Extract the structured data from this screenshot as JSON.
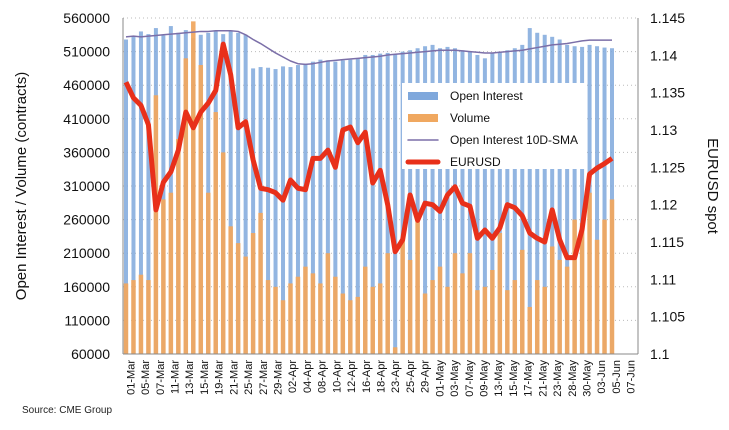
{
  "chart_data": {
    "type": "bar",
    "title": "",
    "ylabel": "Open Interest / Volume (contracts)",
    "y2label": "EURUSD spot",
    "ylim": [
      60000,
      560000
    ],
    "yticks": [
      60000,
      110000,
      160000,
      210000,
      260000,
      310000,
      360000,
      410000,
      460000,
      510000,
      560000
    ],
    "y2lim": [
      1.1,
      1.145
    ],
    "y2ticks": [
      "1.1",
      "1.105",
      "1.11",
      "1.115",
      "1.12",
      "1.125",
      "1.13",
      "1.135",
      "1.14",
      "1.145"
    ],
    "xticklabels": [
      "01-Mar",
      "05-Mar",
      "07-Mar",
      "11-Mar",
      "13-Mar",
      "15-Mar",
      "19-Mar",
      "21-Mar",
      "25-Mar",
      "27-Mar",
      "29-Mar",
      "02-Apr",
      "04-Apr",
      "08-Apr",
      "10-Apr",
      "12-Apr",
      "16-Apr",
      "18-Apr",
      "23-Apr",
      "25-Apr",
      "29-Apr",
      "01-May",
      "03-May",
      "07-May",
      "09-May",
      "13-May",
      "15-May",
      "17-May",
      "21-May",
      "23-May",
      "28-May",
      "30-May",
      "03-Jun",
      "05-Jun",
      "07-Jun"
    ],
    "grid": true,
    "legend_position": "center-right",
    "series": [
      {
        "name": "Open Interest",
        "type": "bar",
        "axis": "left",
        "color": "#7fa8dc",
        "values": [
          528000,
          532000,
          540000,
          536000,
          545000,
          534000,
          548000,
          538000,
          542000,
          530000,
          535000,
          538000,
          540000,
          536000,
          540000,
          538000,
          535000,
          485000,
          487000,
          486000,
          484000,
          488000,
          487000,
          490000,
          492000,
          495000,
          498000,
          497000,
          495000,
          497000,
          498000,
          500000,
          505000,
          505000,
          507000,
          508000,
          506000,
          510000,
          512000,
          515000,
          518000,
          520000,
          515000,
          517000,
          515000,
          512000,
          510000,
          505000,
          500000,
          508000,
          510000,
          512000,
          515000,
          520000,
          545000,
          538000,
          535000,
          532000,
          528000,
          520000,
          518000,
          517000,
          520000,
          518000,
          516000,
          515000
        ]
      },
      {
        "name": "Volume",
        "type": "bar",
        "axis": "left",
        "color": "#f0a860",
        "values": [
          165000,
          170000,
          178000,
          170000,
          445000,
          290000,
          300000,
          380000,
          500000,
          555000,
          490000,
          300000,
          420000,
          360000,
          250000,
          225000,
          205000,
          240000,
          270000,
          170000,
          160000,
          140000,
          165000,
          175000,
          190000,
          180000,
          165000,
          210000,
          175000,
          150000,
          140000,
          145000,
          190000,
          160000,
          165000,
          210000,
          70000,
          230000,
          200000,
          260000,
          150000,
          170000,
          190000,
          160000,
          210000,
          180000,
          210000,
          155000,
          160000,
          185000,
          240000,
          155000,
          170000,
          215000,
          130000,
          170000,
          160000,
          220000,
          200000,
          190000,
          260000,
          255000,
          300000,
          230000,
          260000,
          290000
        ]
      },
      {
        "name": "Open Interest 10D-SMA",
        "type": "line",
        "axis": "left",
        "color": "#7b6fa8",
        "values": [
          532000,
          533000,
          532000,
          533000,
          534000,
          535000,
          536000,
          537000,
          538000,
          539000,
          540000,
          540000,
          541000,
          541000,
          541000,
          540000,
          535000,
          528000,
          522000,
          515000,
          508000,
          502000,
          496000,
          492000,
          491000,
          492000,
          494000,
          496000,
          497000,
          498000,
          499000,
          500000,
          501000,
          502000,
          503000,
          505000,
          506000,
          507000,
          508000,
          509000,
          510000,
          511000,
          512000,
          512000,
          512000,
          511000,
          510000,
          509000,
          508000,
          508000,
          509000,
          510000,
          511000,
          512000,
          514000,
          516000,
          518000,
          520000,
          521000,
          522000,
          524000,
          526000,
          527000,
          527000,
          527000,
          527000
        ]
      },
      {
        "name": "EURUSD",
        "type": "line",
        "axis": "right",
        "color": "#e8301a",
        "values": [
          1.1364,
          1.1343,
          1.1333,
          1.1307,
          1.1193,
          1.123,
          1.1244,
          1.1273,
          1.1324,
          1.1303,
          1.1324,
          1.1336,
          1.1353,
          1.1415,
          1.1374,
          1.1303,
          1.1311,
          1.126,
          1.1222,
          1.122,
          1.1216,
          1.1206,
          1.1233,
          1.1222,
          1.122,
          1.1262,
          1.1262,
          1.1273,
          1.125,
          1.13,
          1.1304,
          1.1283,
          1.1297,
          1.1229,
          1.1246,
          1.12,
          1.1137,
          1.1153,
          1.1213,
          1.1179,
          1.1202,
          1.12,
          1.1191,
          1.1213,
          1.1224,
          1.1202,
          1.1198,
          1.1155,
          1.1166,
          1.1155,
          1.1169,
          1.12,
          1.1196,
          1.1185,
          1.1162,
          1.1155,
          1.115,
          1.1193,
          1.1153,
          1.1129,
          1.1129,
          1.1167,
          1.1241,
          1.1249,
          1.1255,
          1.1262
        ]
      }
    ]
  },
  "source": "Source: CME Group"
}
